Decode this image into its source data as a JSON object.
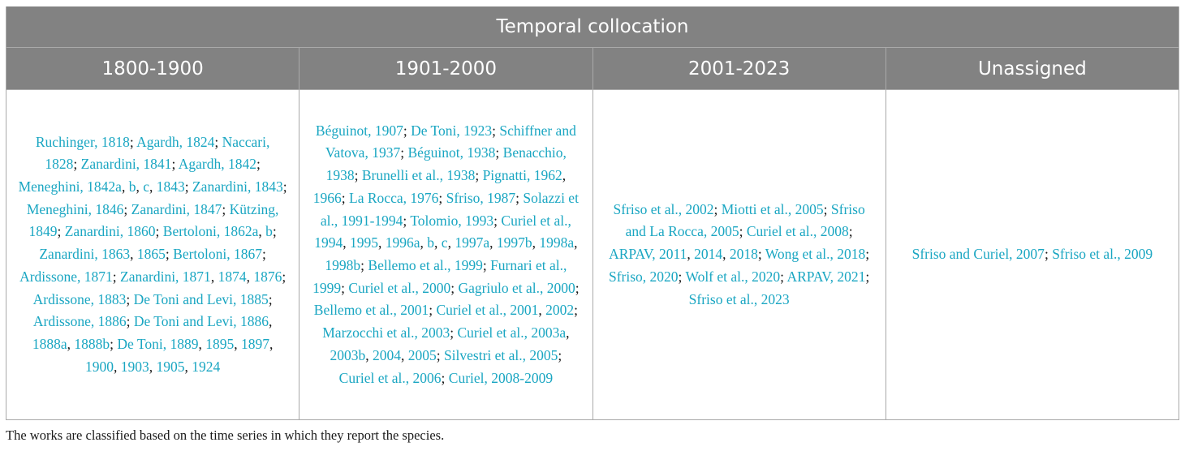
{
  "table": {
    "title": "Temporal collocation",
    "columns": [
      {
        "header": "1800-1900",
        "refs": [
          [
            "Ruchinger, 1818"
          ],
          [
            "Agardh, 1824"
          ],
          [
            "Naccari, 1828"
          ],
          [
            "Zanardini, 1841"
          ],
          [
            "Agardh, 1842"
          ],
          [
            "Meneghini, 1842a",
            "b",
            "c",
            "1843"
          ],
          [
            "Zanardini, 1843"
          ],
          [
            "Meneghini, 1846"
          ],
          [
            "Zanardini, 1847"
          ],
          [
            "Kützing, 1849"
          ],
          [
            "Zanardini, 1860"
          ],
          [
            "Bertoloni, 1862a",
            "b"
          ],
          [
            "Zanardini, 1863",
            "1865"
          ],
          [
            "Bertoloni, 1867"
          ],
          [
            "Ardissone, 1871"
          ],
          [
            "Zanardini, 1871",
            "1874",
            "1876"
          ],
          [
            "Ardissone, 1883"
          ],
          [
            "De Toni and Levi, 1885"
          ],
          [
            "Ardissone, 1886"
          ],
          [
            "De Toni and Levi, 1886",
            "1888a",
            "1888b"
          ],
          [
            "De Toni, 1889",
            "1895",
            "1897",
            "1900",
            "1903",
            "1905",
            "1924"
          ]
        ]
      },
      {
        "header": "1901-2000",
        "refs": [
          [
            "Béguinot, 1907"
          ],
          [
            "De Toni, 1923"
          ],
          [
            "Schiffner and Vatova, 1937"
          ],
          [
            "Béguinot, 1938"
          ],
          [
            "Benacchio, 1938"
          ],
          [
            "Brunelli et al., 1938"
          ],
          [
            "Pignatti, 1962",
            "1966"
          ],
          [
            "La Rocca, 1976"
          ],
          [
            "Sfriso, 1987"
          ],
          [
            "Solazzi et al., 1991-1994"
          ],
          [
            "Tolomio, 1993"
          ],
          [
            "Curiel et al., 1994",
            "1995",
            "1996a",
            "b",
            "c",
            "1997a",
            "1997b",
            "1998a",
            "1998b"
          ],
          [
            "Bellemo et al., 1999"
          ],
          [
            "Furnari et al., 1999"
          ],
          [
            "Curiel et al., 2000"
          ],
          [
            "Gagriulo et al., 2000"
          ],
          [
            "Bellemo et al., 2001"
          ],
          [
            "Curiel et al., 2001",
            "2002"
          ],
          [
            "Marzocchi et al., 2003"
          ],
          [
            "Curiel et al., 2003a",
            "2003b",
            "2004",
            "2005"
          ],
          [
            "Silvestri et al., 2005"
          ],
          [
            "Curiel et al., 2006"
          ],
          [
            "Curiel, 2008-2009"
          ]
        ]
      },
      {
        "header": "2001-2023",
        "refs": [
          [
            "Sfriso et al., 2002"
          ],
          [
            "Miotti et al., 2005"
          ],
          [
            "Sfriso and La Rocca, 2005"
          ],
          [
            "Curiel et al., 2008"
          ],
          [
            "ARPAV, 2011",
            "2014",
            "2018"
          ],
          [
            "Wong et al., 2018"
          ],
          [
            "Sfriso, 2020"
          ],
          [
            "Wolf et al., 2020"
          ],
          [
            "ARPAV, 2021"
          ],
          [
            "Sfriso et al., 2023"
          ]
        ]
      },
      {
        "header": "Unassigned",
        "refs": [
          [
            "Sfriso and Curiel, 2007"
          ],
          [
            "Sfriso et al., 2009"
          ]
        ]
      }
    ]
  },
  "footnote": "The works are classified based on the time series in which they report the species.",
  "colors": {
    "header_bg": "#828282",
    "header_text": "#ffffff",
    "link": "#1aa6c2",
    "text": "#1a1a1a",
    "border": "#a9a9a9"
  }
}
